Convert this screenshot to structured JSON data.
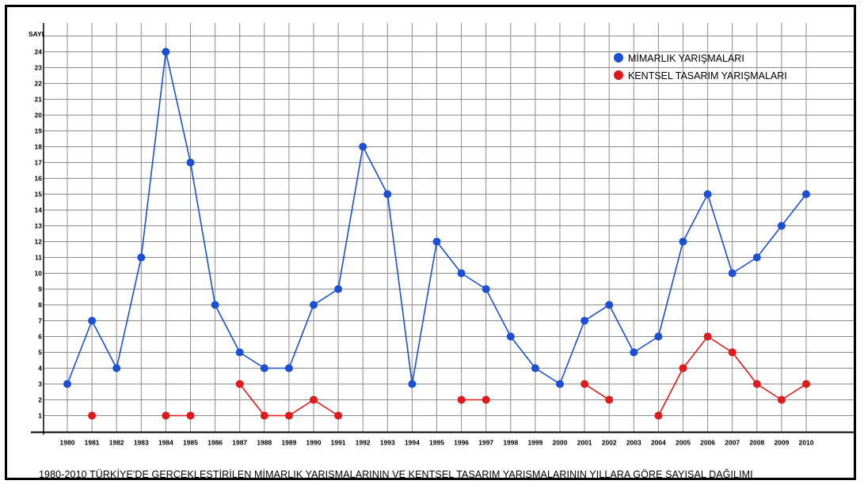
{
  "chart_data": {
    "type": "line",
    "title": "1980-2010 TÜRKİYE'DE GERÇEKLEŞTİRİLEN MİMARLIK YARIŞMALARININ VE KENTSEL TASARIM YARIŞMALARININ YILLARA GÖRE SAYISAL DAĞILIMI",
    "ylabel": "SAYI",
    "xlabel": "",
    "ylim": [
      0,
      25
    ],
    "yticks": [
      "1",
      "2",
      "3",
      "4",
      "5",
      "6",
      "7",
      "8",
      "9",
      "10",
      "11",
      "12",
      "13",
      "14",
      "15",
      "16",
      "17",
      "18",
      "19",
      "20",
      "21",
      "22",
      "23",
      "24"
    ],
    "categories": [
      "1980",
      "1981",
      "1982",
      "1983",
      "1984",
      "1985",
      "1986",
      "1987",
      "1988",
      "1989",
      "1990",
      "1991",
      "1992",
      "1993",
      "1994",
      "1995",
      "1996",
      "1997",
      "1998",
      "1999",
      "2000",
      "2001",
      "2002",
      "2003",
      "2004",
      "2005",
      "2006",
      "2007",
      "2008",
      "2009",
      "2010"
    ],
    "grid": true,
    "legend_position": "top-right",
    "series": [
      {
        "name": "MİMARLIK YARIŞMALARI",
        "color": "#1a4fd6",
        "values": [
          3,
          7,
          4,
          11,
          24,
          17,
          8,
          5,
          4,
          4,
          8,
          9,
          18,
          15,
          3,
          12,
          10,
          9,
          6,
          4,
          3,
          7,
          8,
          5,
          6,
          12,
          15,
          10,
          11,
          13,
          15
        ]
      },
      {
        "name": "KENTSEL TASARIM YARIŞMALARI",
        "color": "#e01a1a",
        "values": [
          null,
          1,
          null,
          null,
          1,
          1,
          null,
          3,
          1,
          1,
          2,
          1,
          null,
          null,
          null,
          null,
          2,
          2,
          null,
          null,
          null,
          3,
          2,
          null,
          1,
          4,
          6,
          5,
          3,
          2,
          3
        ]
      }
    ]
  }
}
